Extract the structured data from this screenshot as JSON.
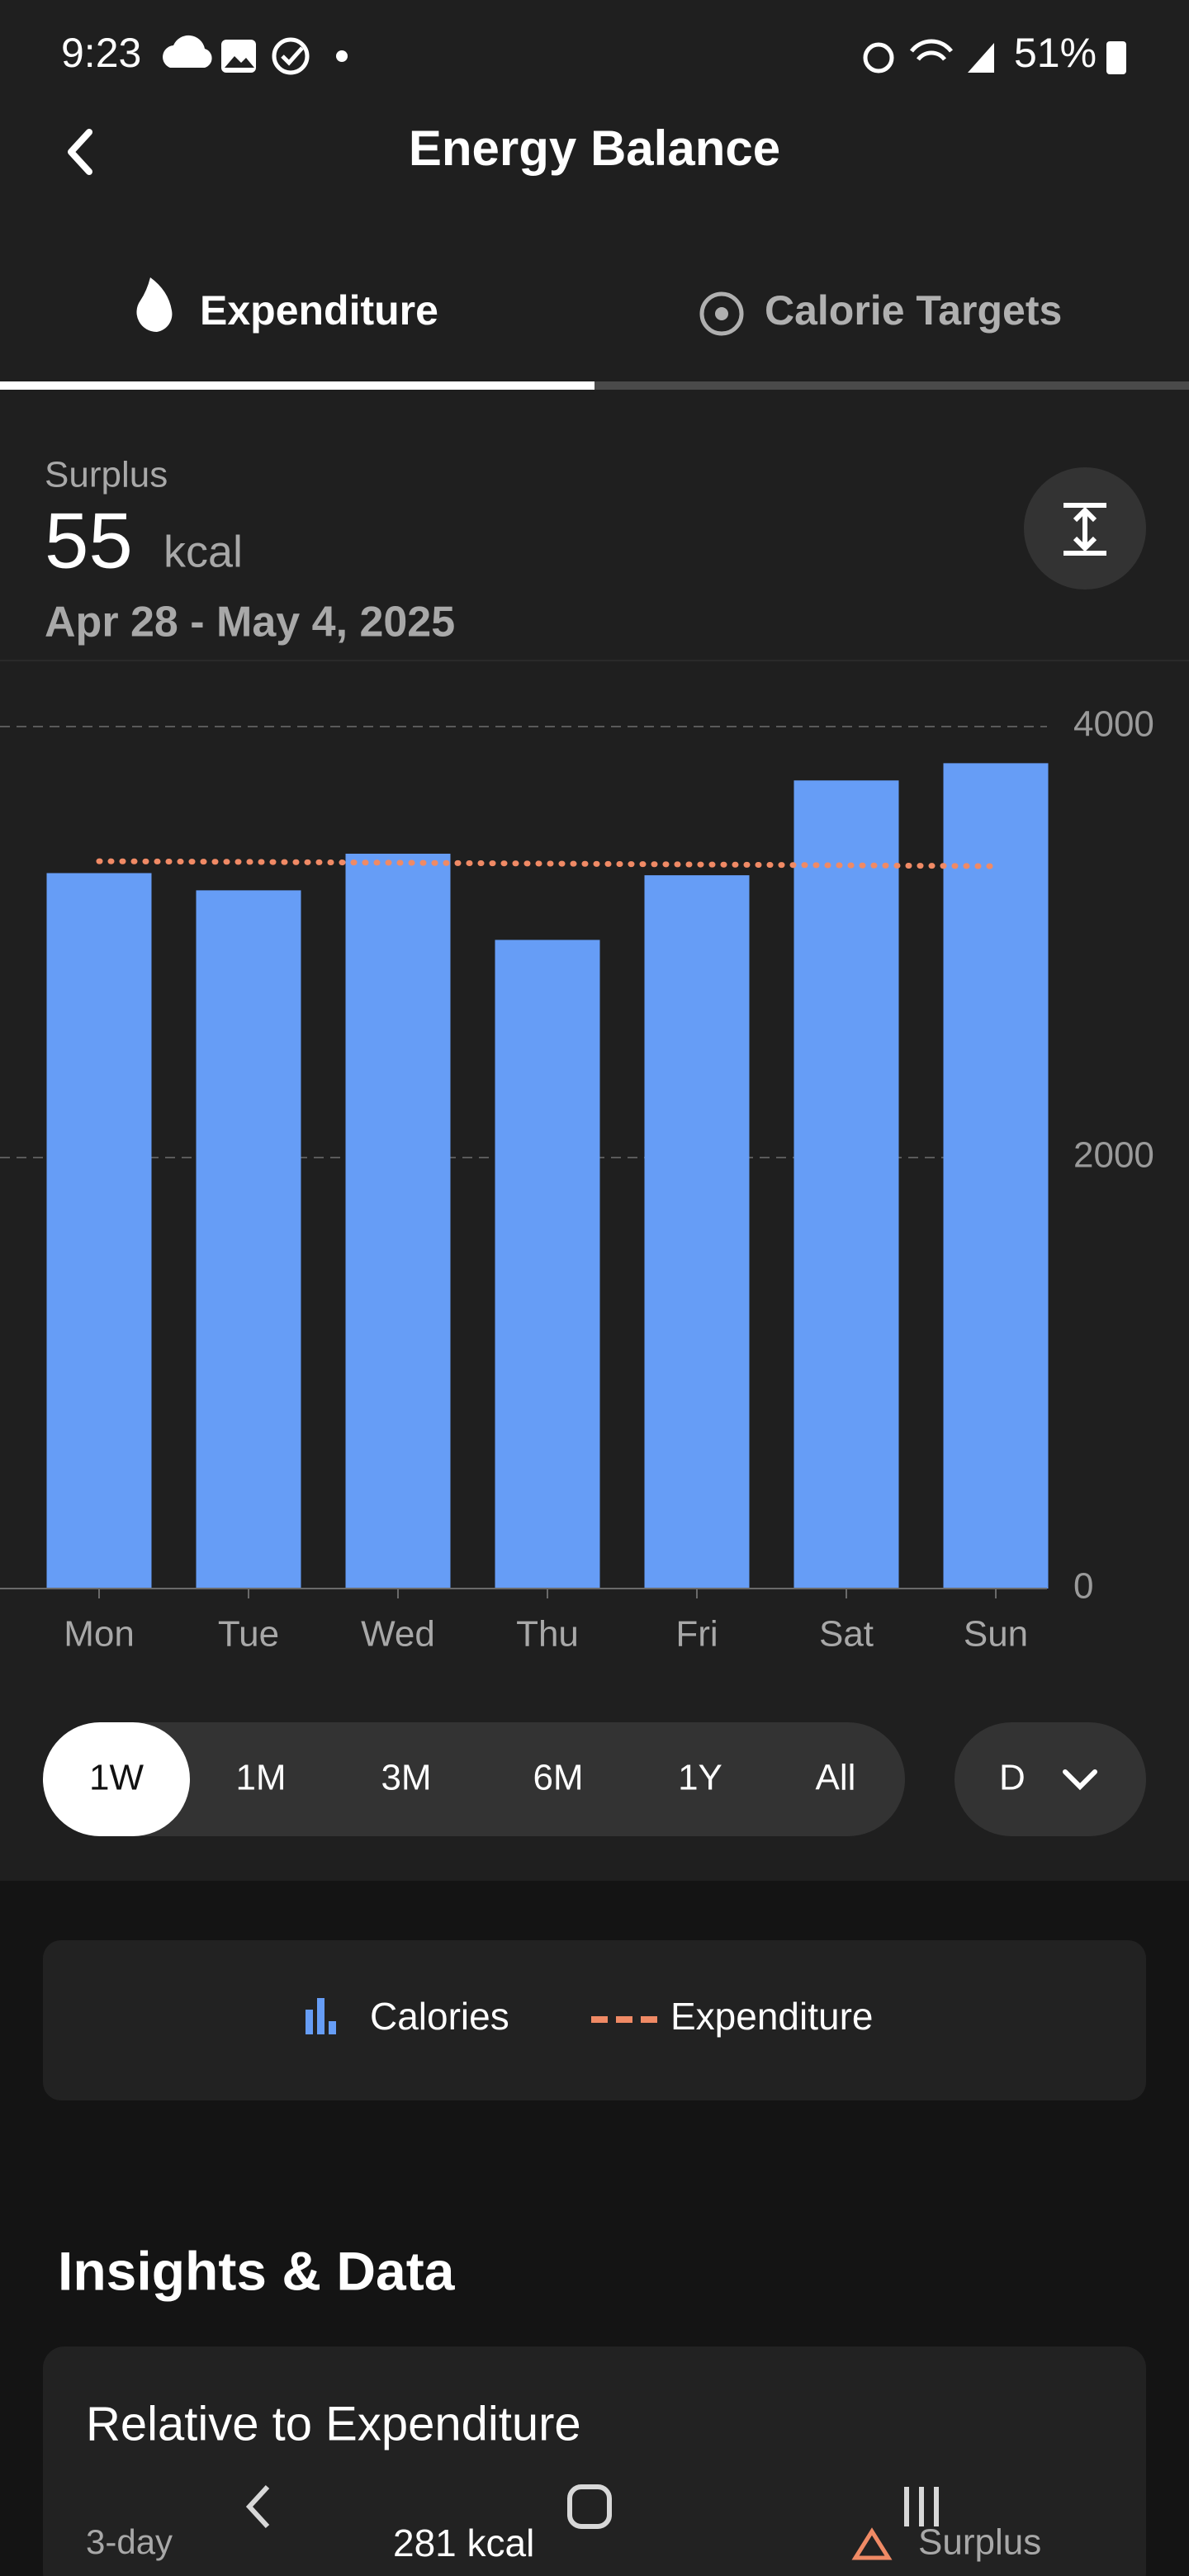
{
  "status_bar": {
    "time": "9:23",
    "battery": "51%"
  },
  "header": {
    "title": "Energy Balance"
  },
  "tabs": [
    "Expenditure",
    "Calorie Targets"
  ],
  "summary": {
    "label": "Surplus",
    "value": "55",
    "unit": "kcal",
    "date_range": "Apr 28 - May 4, 2025"
  },
  "chart_data": {
    "type": "bar",
    "categories": [
      "Mon",
      "Tue",
      "Wed",
      "Thu",
      "Fri",
      "Sat",
      "Sun"
    ],
    "series": [
      {
        "name": "Calories",
        "color": "#669df6",
        "values": [
          3320,
          3240,
          3410,
          3010,
          3310,
          3750,
          3830
        ]
      },
      {
        "name": "Expenditure",
        "type": "line",
        "color": "#f08a65",
        "values": [
          3375,
          3372,
          3368,
          3364,
          3360,
          3356,
          3352
        ]
      }
    ],
    "ylim": [
      0,
      4000
    ],
    "yticks": [
      0,
      2000,
      4000
    ],
    "grid": true
  },
  "range_options": [
    "1W",
    "1M",
    "3M",
    "6M",
    "1Y",
    "All"
  ],
  "dropdown": "D",
  "insights": {
    "title": "Insights & Data",
    "card_title": "Relative to Expenditure",
    "period": "3-day",
    "amount": "281 kcal",
    "status": "Surplus"
  }
}
